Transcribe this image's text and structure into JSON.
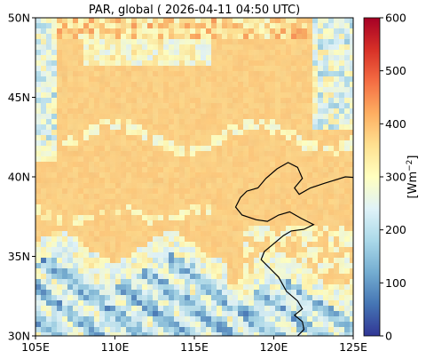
{
  "chart_data": {
    "type": "heatmap",
    "title": "PAR, global ( 2026-04-11 04:50 UTC)",
    "xlabel": "",
    "ylabel": "",
    "xlim": [
      105,
      125
    ],
    "ylim": [
      30,
      50
    ],
    "xticks": [
      {
        "value": 105,
        "label": "105E"
      },
      {
        "value": 110,
        "label": "110E"
      },
      {
        "value": 115,
        "label": "115E"
      },
      {
        "value": 120,
        "label": "120E"
      },
      {
        "value": 125,
        "label": "125E"
      }
    ],
    "yticks": [
      {
        "value": 30,
        "label": "30N"
      },
      {
        "value": 35,
        "label": "35N"
      },
      {
        "value": 40,
        "label": "40N"
      },
      {
        "value": 45,
        "label": "45N"
      },
      {
        "value": 50,
        "label": "50N"
      }
    ],
    "colorbar": {
      "label": "[Wm",
      "label_exponent": "−2",
      "label_close": "]",
      "range": [
        0,
        600
      ],
      "ticks": [
        {
          "value": 0,
          "label": "0"
        },
        {
          "value": 100,
          "label": "100"
        },
        {
          "value": 200,
          "label": "200"
        },
        {
          "value": 300,
          "label": "300"
        },
        {
          "value": 400,
          "label": "400"
        },
        {
          "value": 500,
          "label": "500"
        },
        {
          "value": 600,
          "label": "600"
        }
      ],
      "colormap": "RdYlBu_r",
      "stops": [
        "#313695",
        "#4575b4",
        "#74add1",
        "#abd9e9",
        "#e0f3f8",
        "#ffffbf",
        "#fee090",
        "#fdae61",
        "#f46d43",
        "#d73027",
        "#a50026"
      ]
    },
    "field": {
      "dominant_value": 380,
      "south_value": 200,
      "north_value": 340,
      "coastline_color": "#000000"
    },
    "grid": false
  }
}
